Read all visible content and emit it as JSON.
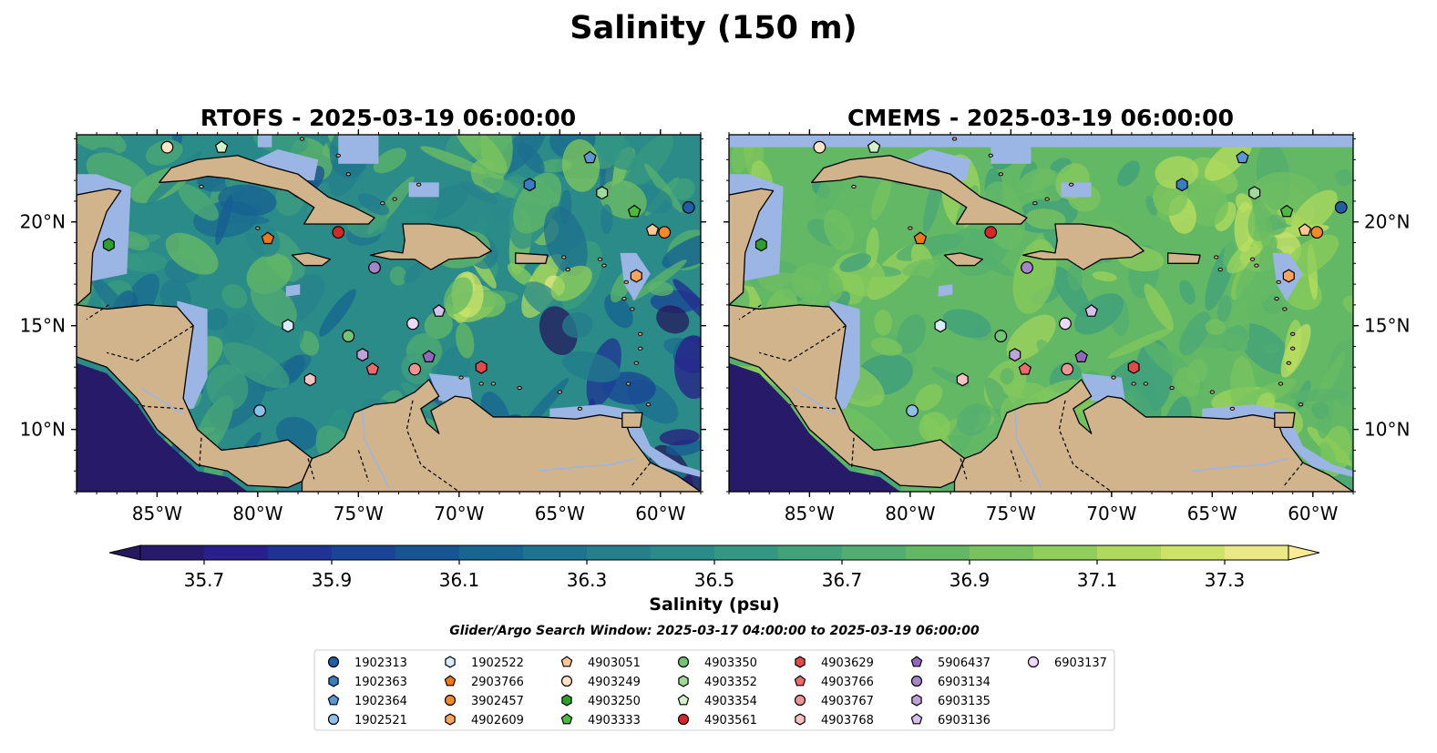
{
  "chart_data": {
    "type": "heatmap",
    "title": "Salinity (150 m)",
    "search_window": "Glider/Argo Search Window: 2025-03-17 04:00:00 to 2025-03-19 06:00:00",
    "colorbar": {
      "label": "Salinity (psu)",
      "vmin": 35.6,
      "vmax": 37.4,
      "levels": [
        35.6,
        35.7,
        35.8,
        35.9,
        36.0,
        36.1,
        36.2,
        36.3,
        36.4,
        36.5,
        36.6,
        36.7,
        36.8,
        36.9,
        37.0,
        37.1,
        37.2,
        37.3,
        37.4
      ],
      "ticks": [
        35.7,
        35.9,
        36.1,
        36.3,
        36.5,
        36.7,
        36.9,
        37.1,
        37.3
      ],
      "tick_labels": [
        "35.7",
        "35.9",
        "36.1",
        "36.3",
        "36.5",
        "36.7",
        "36.9",
        "37.1",
        "37.3"
      ],
      "extend": "both",
      "colormap": "summer-to-deep (haline-like)"
    },
    "panels": [
      {
        "title": "RTOFS - 2025-03-19 06:00:00",
        "lon_range": [
          -89,
          -58
        ],
        "lat_range": [
          7,
          24.2
        ],
        "mean_salinity": 36.45,
        "yaxis_side": "left"
      },
      {
        "title": "CMEMS - 2025-03-19 06:00:00",
        "lon_range": [
          -89,
          -58
        ],
        "lat_range": [
          7,
          24.2
        ],
        "mean_salinity": 36.85,
        "yaxis_side": "right"
      }
    ],
    "x_ticks": [
      -85,
      -80,
      -75,
      -70,
      -65,
      -60
    ],
    "x_tick_labels": [
      "85°W",
      "80°W",
      "75°W",
      "70°W",
      "65°W",
      "60°W"
    ],
    "y_ticks": [
      10,
      15,
      20
    ],
    "y_tick_labels": [
      "10°N",
      "15°N",
      "20°N"
    ],
    "land_color": "#d2b48c",
    "shelf_color": "#9bb5e4",
    "floats": [
      {
        "id": "1902313",
        "marker": "circle",
        "color": "#1f5fa8",
        "lon": -58.6,
        "lat": 20.7
      },
      {
        "id": "1902363",
        "marker": "hexagon",
        "color": "#3a7cc4",
        "lon": -66.5,
        "lat": 21.8
      },
      {
        "id": "1902364",
        "marker": "pentagon",
        "color": "#5a97d6",
        "lon": -63.5,
        "lat": 23.1
      },
      {
        "id": "1902521",
        "marker": "circle",
        "color": "#8ec0e8",
        "lon": -79.9,
        "lat": 10.9
      },
      {
        "id": "1902522",
        "marker": "hexagon",
        "color": "#d8ecfb",
        "lon": -78.5,
        "lat": 15.0
      },
      {
        "id": "2903766",
        "marker": "pentagon",
        "color": "#f07818",
        "lon": -79.5,
        "lat": 19.2
      },
      {
        "id": "3902457",
        "marker": "circle",
        "color": "#f5892a",
        "lon": -59.8,
        "lat": 19.5
      },
      {
        "id": "4902609",
        "marker": "hexagon",
        "color": "#fba45a",
        "lon": -61.2,
        "lat": 17.4
      },
      {
        "id": "4903051",
        "marker": "pentagon",
        "color": "#fdc896",
        "lon": -60.4,
        "lat": 19.6
      },
      {
        "id": "4903249",
        "marker": "circle",
        "color": "#fde3c8",
        "lon": -84.5,
        "lat": 23.6
      },
      {
        "id": "4903250",
        "marker": "hexagon",
        "color": "#2ca02c",
        "lon": -87.4,
        "lat": 18.9
      },
      {
        "id": "4903333",
        "marker": "pentagon",
        "color": "#4cba3c",
        "lon": -61.3,
        "lat": 20.5
      },
      {
        "id": "4903350",
        "marker": "circle",
        "color": "#74c476",
        "lon": -75.5,
        "lat": 14.5
      },
      {
        "id": "4903352",
        "marker": "hexagon",
        "color": "#a1d99b",
        "lon": -62.9,
        "lat": 21.4
      },
      {
        "id": "4903354",
        "marker": "pentagon",
        "color": "#d3f2c9",
        "lon": -81.8,
        "lat": 23.6
      },
      {
        "id": "4903561",
        "marker": "circle",
        "color": "#d62728",
        "lon": -76.0,
        "lat": 19.5
      },
      {
        "id": "4903629",
        "marker": "hexagon",
        "color": "#e04a4a",
        "lon": -68.9,
        "lat": 13.0
      },
      {
        "id": "4903766",
        "marker": "pentagon",
        "color": "#ec6a6a",
        "lon": -74.3,
        "lat": 12.9
      },
      {
        "id": "4903767",
        "marker": "circle",
        "color": "#f29393",
        "lon": -72.2,
        "lat": 12.9
      },
      {
        "id": "4903768",
        "marker": "hexagon",
        "color": "#f8c2c2",
        "lon": -77.4,
        "lat": 12.4
      },
      {
        "id": "5906437",
        "marker": "pentagon",
        "color": "#9467bd",
        "lon": -71.5,
        "lat": 13.5
      },
      {
        "id": "6903134",
        "marker": "circle",
        "color": "#a585c8",
        "lon": -74.2,
        "lat": 17.8
      },
      {
        "id": "6903135",
        "marker": "hexagon",
        "color": "#bea2d8",
        "lon": -74.8,
        "lat": 13.6
      },
      {
        "id": "6903136",
        "marker": "pentagon",
        "color": "#d7c0ec",
        "lon": -71.0,
        "lat": 15.7
      },
      {
        "id": "6903137",
        "marker": "circle",
        "color": "#ead9f8",
        "lon": -72.3,
        "lat": 15.1
      }
    ]
  }
}
